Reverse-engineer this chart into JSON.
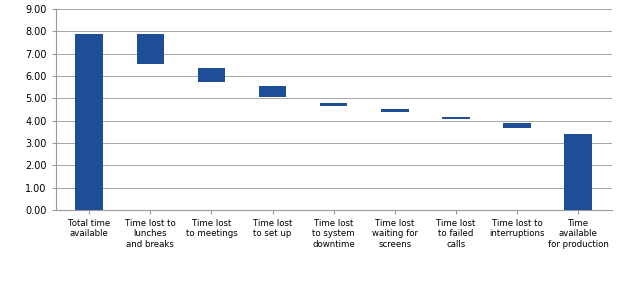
{
  "categories": [
    "Total time\navailable",
    "Time lost to\nlunches\nand breaks",
    "Time lost\nto meetings",
    "Time lost\nto set up",
    "Time lost\nto system\ndowntime",
    "Time lost\nwaiting for\nscreens",
    "Time lost\nto failed\ncalls",
    "Time lost to\ninterruptions",
    "Time\navailable\nfor production"
  ],
  "bar_bottoms": [
    0.0,
    6.55,
    5.75,
    5.05,
    4.65,
    4.38,
    4.07,
    3.68,
    0.0
  ],
  "bar_tops": [
    7.9,
    7.9,
    6.35,
    5.55,
    4.8,
    4.52,
    4.15,
    3.88,
    3.42
  ],
  "bar_color": "#1F4E99",
  "background_color": "#ffffff",
  "grid_color": "#999999",
  "ylim": [
    0.0,
    9.0
  ],
  "yticks": [
    0.0,
    1.0,
    2.0,
    3.0,
    4.0,
    5.0,
    6.0,
    7.0,
    8.0,
    9.0
  ],
  "bar_width": 0.45,
  "figsize": [
    6.18,
    3.0
  ],
  "dpi": 100
}
